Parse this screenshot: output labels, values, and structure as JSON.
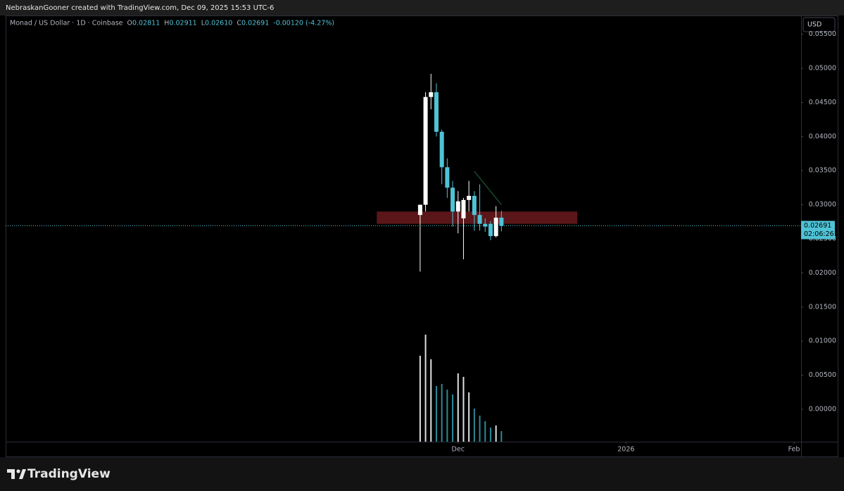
{
  "header": {
    "caption": "NebraskanGooner created with TradingView.com, Dec 09, 2025 15:53 UTC-6"
  },
  "footer": {
    "brand": "TradingView"
  },
  "chart_data": {
    "type": "candlestick",
    "symbol": "Monad / US Dollar · 1D · Coinbase",
    "ohlc_keys": [
      "O",
      "H",
      "L",
      "C"
    ],
    "ohlc_values": [
      {
        "value": 0.02811,
        "label": "0.02811"
      },
      {
        "value": 0.02911,
        "label": "0.02911"
      },
      {
        "value": 0.0261,
        "label": "0.02610"
      },
      {
        "value": 0.02691,
        "label": "0.02691"
      }
    ],
    "change": "-0.00120 (-4.27%)",
    "currency": "USD",
    "last_price": {
      "value": 0.02691,
      "label": "0.02691"
    },
    "countdown": "02:06:26",
    "x": [
      0,
      1,
      2,
      3,
      4,
      5,
      6,
      7,
      8,
      9,
      10,
      11,
      12,
      13,
      14,
      15
    ],
    "open": [
      0.0285,
      0.03,
      0.0458,
      0.0465,
      0.0407,
      0.0355,
      0.0325,
      0.029,
      0.028,
      0.0307,
      0.0313,
      0.0285,
      0.0272,
      0.0272,
      0.0254,
      0.02811
    ],
    "high": [
      0.03,
      0.0465,
      0.0492,
      0.0478,
      0.041,
      0.0368,
      0.0335,
      0.032,
      0.031,
      0.0335,
      0.032,
      0.033,
      0.028,
      0.0276,
      0.0298,
      0.02911
    ],
    "low": [
      0.0202,
      0.029,
      0.044,
      0.04,
      0.033,
      0.031,
      0.0268,
      0.0258,
      0.022,
      0.029,
      0.0262,
      0.0262,
      0.026,
      0.0248,
      0.0252,
      0.0261
    ],
    "close": [
      0.03,
      0.0458,
      0.0465,
      0.0407,
      0.0355,
      0.0325,
      0.029,
      0.0305,
      0.0307,
      0.0313,
      0.0285,
      0.0272,
      0.0268,
      0.0254,
      0.0281,
      0.02691
    ],
    "volume": [
      122,
      152,
      117,
      79,
      82,
      74,
      67,
      97,
      92,
      70,
      47,
      37,
      29,
      20,
      23,
      15
    ],
    "up_color": "#ffffff",
    "down_color": "#4fc3d6",
    "volume_up_color": "#e0e0e0",
    "volume_down_color": "#2b8a99",
    "xlim": [
      -76.5,
      70.3
    ],
    "xticks": [
      {
        "value": 7,
        "label": "Dec"
      },
      {
        "value": 38,
        "label": "2026"
      },
      {
        "value": 69,
        "label": "Feb"
      }
    ],
    "ylim": [
      -0.00475,
      0.05775
    ],
    "yticks": [
      {
        "value": 0,
        "label": "0.00000"
      },
      {
        "value": 0.005,
        "label": "0.00500"
      },
      {
        "value": 0.01,
        "label": "0.01000"
      },
      {
        "value": 0.015,
        "label": "0.01500"
      },
      {
        "value": 0.02,
        "label": "0.02000"
      },
      {
        "value": 0.025,
        "label": "0.02500"
      },
      {
        "value": 0.03,
        "label": "0.03000"
      },
      {
        "value": 0.035,
        "label": "0.03500"
      },
      {
        "value": 0.04,
        "label": "0.04000"
      },
      {
        "value": 0.045,
        "label": "0.04500"
      },
      {
        "value": 0.05,
        "label": "0.05000"
      },
      {
        "value": 0.055,
        "label": "0.05500"
      }
    ],
    "zone": {
      "x": [
        -8,
        29
      ],
      "y": [
        0.0272,
        0.029
      ],
      "color": "#6b1a1f"
    },
    "trend_line": {
      "x": [
        10,
        15
      ],
      "y": [
        0.0349,
        0.03
      ],
      "color": "#1f6b3a"
    }
  }
}
